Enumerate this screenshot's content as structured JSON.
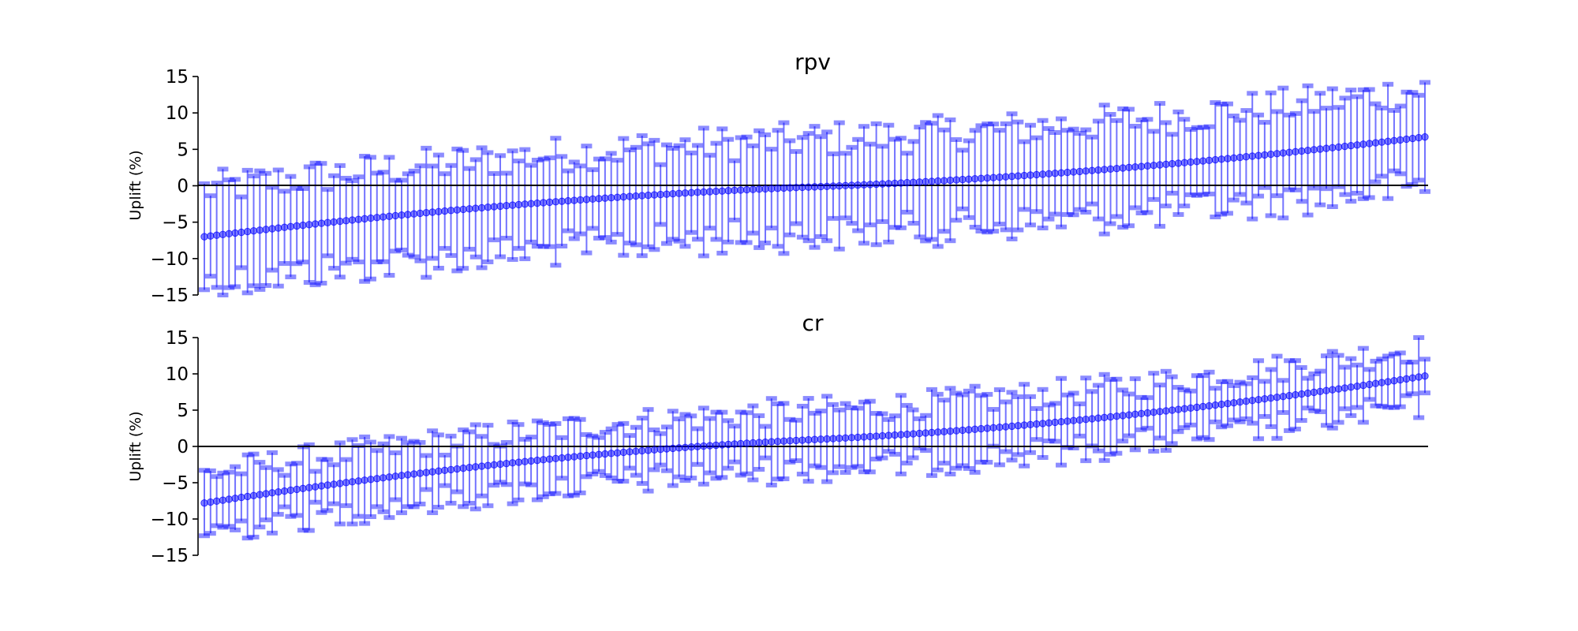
{
  "chart_data": [
    {
      "type": "errorbar",
      "title": "rpv",
      "xlabel": "",
      "ylabel": "Uplift (%)",
      "ylim": [
        -15,
        15
      ],
      "yticks": [
        -15,
        -10,
        -5,
        0,
        5,
        10,
        15
      ],
      "ytick_labels": [
        "−15",
        "−10",
        "−5",
        "0",
        "5",
        "10",
        "15"
      ],
      "n_points": 199,
      "point_start": -7.0,
      "point_end": 6.7,
      "ci_halfwidth_min": 4.0,
      "ci_halfwidth_max": 9.0,
      "reference_line": 0,
      "marker_color": "#0000ff",
      "grid": false
    },
    {
      "type": "errorbar",
      "title": "cr",
      "xlabel": "",
      "ylabel": "Uplift (%)",
      "ylim": [
        -15,
        15
      ],
      "yticks": [
        -15,
        -10,
        -5,
        0,
        5,
        10,
        15
      ],
      "ytick_labels": [
        "−15",
        "−10",
        "−5",
        "0",
        "5",
        "10",
        "15"
      ],
      "n_points": 199,
      "point_start": -7.8,
      "point_end": 9.7,
      "ci_halfwidth_min": 2.0,
      "ci_halfwidth_max": 6.0,
      "reference_line": 0,
      "marker_color": "#0000ff",
      "grid": false
    }
  ]
}
